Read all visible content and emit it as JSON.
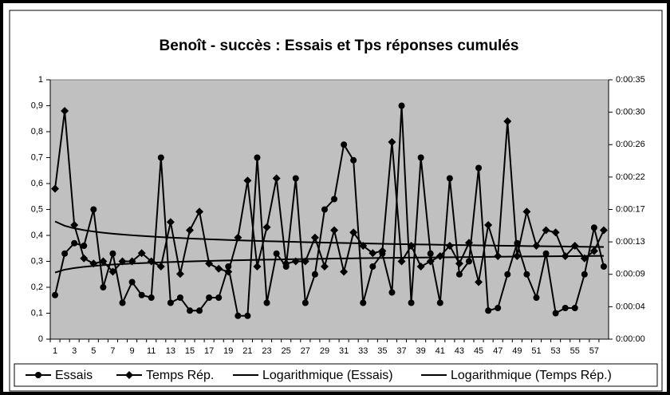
{
  "chart_data": {
    "type": "line",
    "title": "Benoît - succès : Essais et Tps réponses cumulés",
    "categories": [
      1,
      null,
      3,
      null,
      5,
      null,
      7,
      null,
      9,
      null,
      11,
      null,
      13,
      null,
      15,
      null,
      17,
      null,
      19,
      null,
      21,
      null,
      23,
      null,
      25,
      null,
      27,
      null,
      29,
      null,
      31,
      null,
      33,
      null,
      35,
      null,
      37,
      null,
      39,
      null,
      41,
      null,
      43,
      null,
      45,
      null,
      47,
      null,
      49,
      null,
      51,
      null,
      53,
      null,
      55,
      null,
      57,
      null
    ],
    "series": [
      {
        "name": "Essais",
        "color": "#000000",
        "marker": "circle",
        "trendline": "Logarithmique (Essais)",
        "values": [
          0.17,
          0.33,
          0.37,
          0.36,
          0.5,
          0.2,
          0.33,
          0.14,
          0.22,
          0.17,
          0.16,
          0.7,
          0.14,
          0.16,
          0.11,
          0.11,
          0.16,
          0.16,
          0.28,
          0.09,
          0.09,
          0.7,
          0.14,
          0.33,
          0.28,
          0.62,
          0.14,
          0.25,
          0.5,
          0.54,
          0.75,
          0.69,
          0.14,
          0.28,
          0.33,
          0.18,
          0.9,
          0.14,
          0.7,
          0.33,
          0.14,
          0.62,
          0.25,
          0.3,
          0.66,
          0.11,
          0.12,
          0.25,
          0.37,
          0.25,
          0.16,
          0.33,
          0.1,
          0.12,
          0.12,
          0.25,
          0.43,
          0.28
        ]
      },
      {
        "name": "Temps Rép.",
        "color": "#000000",
        "marker": "diamond",
        "axis": "y2",
        "trendline": "Logarithmique (Temps Rép.)",
        "values": [
          20.3,
          30.8,
          15.4,
          10.9,
          10.2,
          10.5,
          9.1,
          10.5,
          10.5,
          11.6,
          10.5,
          9.8,
          15.8,
          8.8,
          14.7,
          17.2,
          10.2,
          9.5,
          9.1,
          13.7,
          21.4,
          9.8,
          15.1,
          21.7,
          10.2,
          10.5,
          10.5,
          13.7,
          9.8,
          14.7,
          9.1,
          14.4,
          12.6,
          11.6,
          11.9,
          26.6,
          10.5,
          12.6,
          9.8,
          10.5,
          11.2,
          12.6,
          10.2,
          13.0,
          7.7,
          15.4,
          11.2,
          29.4,
          11.2,
          17.2,
          12.6,
          14.7,
          14.4,
          11.2,
          12.6,
          10.9,
          11.9,
          14.7
        ]
      }
    ],
    "ylim": [
      0,
      1
    ],
    "yticks": [
      0,
      {
        "value": 0.1,
        "label": "0,1"
      },
      {
        "value": 0.2,
        "label": "0,2"
      },
      {
        "value": 0.3,
        "label": "0,3"
      },
      {
        "value": 0.4,
        "label": "0,4"
      },
      {
        "value": 0.5,
        "label": "0,5"
      },
      {
        "value": 0.6,
        "label": "0,6"
      },
      {
        "value": 0.7,
        "label": "0,7"
      },
      {
        "value": 0.8,
        "label": "0,8"
      },
      {
        "value": 0.9,
        "label": "0,9"
      },
      1
    ],
    "y2lim": [
      0,
      35
    ],
    "y2ticks": [
      {
        "value": 0,
        "label": "0:00:00"
      },
      {
        "value": 4.375,
        "label": "0:00:04"
      },
      {
        "value": 8.75,
        "label": "0:00:09"
      },
      {
        "value": 13.125,
        "label": "0:00:13"
      },
      {
        "value": 17.5,
        "label": "0:00:17"
      },
      {
        "value": 21.875,
        "label": "0:00:22"
      },
      {
        "value": 26.25,
        "label": "0:00:26"
      },
      {
        "value": 30.625,
        "label": "0:00:30"
      },
      {
        "value": 35,
        "label": "0:00:35"
      }
    ],
    "legend": "bottom"
  }
}
